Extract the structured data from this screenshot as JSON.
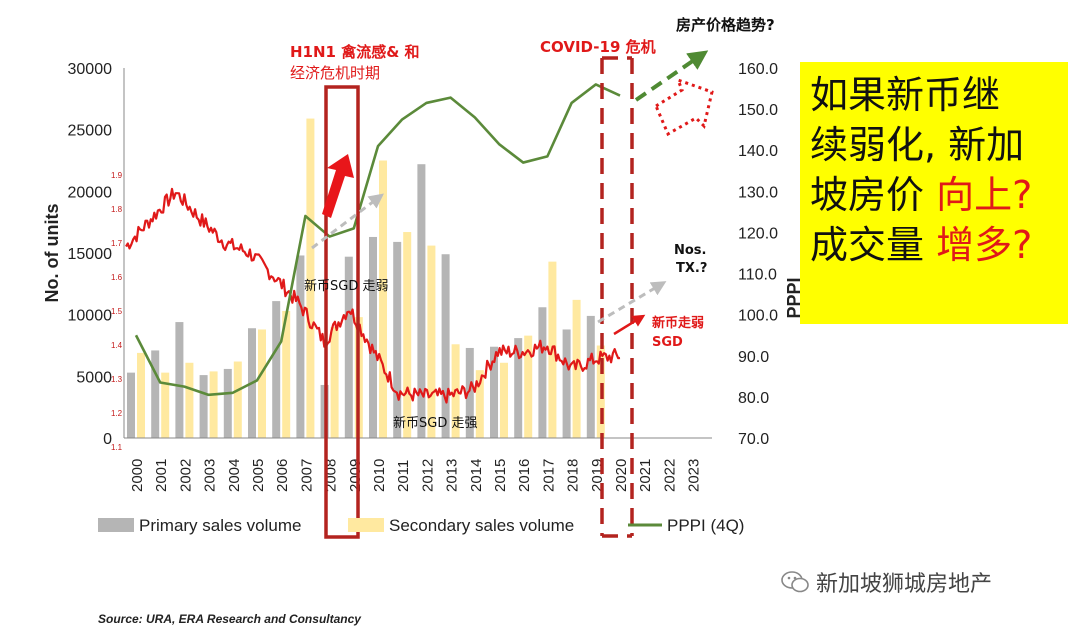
{
  "chart_data": {
    "type": "bar",
    "y_left_label": "No. of units",
    "y_right_label": "PPPI",
    "y_left_ticks": [
      "30000",
      "25000",
      "20000",
      "15000",
      "10000",
      "5000",
      "0"
    ],
    "y_right_ticks": [
      "160.0",
      "150.0",
      "140.0",
      "130.0",
      "120.0",
      "110.0",
      "100.0",
      "90.0",
      "80.0",
      "70.0"
    ],
    "fx_ticks": [
      "1.9",
      "1.8",
      "1.7",
      "1.6",
      "1.5",
      "1.4",
      "1.3",
      "1.2",
      "1.1"
    ],
    "ylim_left": [
      0,
      30000
    ],
    "ylim_right": [
      70,
      160
    ],
    "categories": [
      "2000",
      "2001",
      "2002",
      "2003",
      "2004",
      "2005",
      "2006",
      "2007",
      "2008",
      "2009",
      "2010",
      "2011",
      "2012",
      "2013",
      "2014",
      "2015",
      "2016",
      "2017",
      "2018",
      "2019",
      "2020",
      "2021",
      "2022",
      "2023"
    ],
    "series": [
      {
        "name": "Primary sales volume",
        "type": "bar",
        "color": "#b5b5b5",
        "values": [
          5300,
          7100,
          9400,
          5100,
          5600,
          8900,
          11100,
          14800,
          4300,
          14700,
          16300,
          15900,
          22200,
          14900,
          7300,
          7400,
          8100,
          10600,
          8800,
          9900,
          null,
          null,
          null,
          null
        ]
      },
      {
        "name": "Secondary sales volume",
        "type": "bar",
        "color": "#ffe9a0",
        "values": [
          6900,
          5300,
          6100,
          5400,
          6200,
          8800,
          10300,
          25900,
          9000,
          9800,
          22500,
          16700,
          15600,
          7600,
          5500,
          6100,
          8300,
          14300,
          11200,
          7500,
          null,
          null,
          null,
          null
        ]
      },
      {
        "name": "PPPI (4Q)",
        "type": "line",
        "color": "#5b8a3a",
        "values": [
          95.0,
          83.5,
          82.5,
          80.5,
          81.0,
          84.0,
          93.5,
          124.0,
          119.0,
          121.0,
          141.0,
          147.5,
          151.5,
          152.8,
          148.0,
          141.5,
          137.0,
          138.5,
          151.5,
          156.0,
          153.3,
          null,
          null,
          null
        ]
      },
      {
        "name": "新币SGD",
        "type": "fx-line",
        "color": "#e01919",
        "values": [
          1.69,
          1.77,
          1.85,
          1.77,
          1.7,
          1.67,
          1.6,
          1.52,
          1.41,
          1.51,
          1.38,
          1.26,
          1.25,
          1.25,
          1.27,
          1.38,
          1.38,
          1.4,
          1.33,
          1.36,
          1.37,
          null,
          null,
          null
        ]
      }
    ],
    "annotations": {
      "h1n1": "H1N1 禽流感& 和",
      "crisis": "经济危机时期",
      "covid": "COVID-19 危机",
      "trend": "房产价格趋势?",
      "nos1": "Nos.",
      "nos2": "TX.?",
      "weak1": "新币SGD 走弱",
      "weak2a": "新币走弱",
      "weak2b": "SGD",
      "strong": "新币SGD 走强"
    },
    "legend_position": "bottom"
  },
  "note": {
    "line1": "如果新币继",
    "line2": "续弱化, 新加",
    "line3a": "坡房价 ",
    "line3b": "向上?",
    "line4a": "成交量 ",
    "line4b": "增多?"
  },
  "watermark": "新加坡狮城房地产",
  "source": "Source: URA, ERA Research and Consultancy"
}
